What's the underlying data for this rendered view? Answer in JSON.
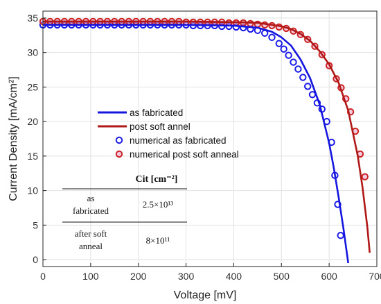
{
  "chart_data": {
    "type": "line",
    "title": "",
    "xlabel": "Voltage [mV]",
    "ylabel": "Current Density [mA/cm²]",
    "xlim": [
      0,
      700
    ],
    "ylim": [
      -1,
      36
    ],
    "x_ticks": [
      "0",
      "100",
      "200",
      "300",
      "400",
      "500",
      "600",
      "700"
    ],
    "y_ticks": [
      "0",
      "5",
      "10",
      "15",
      "20",
      "25",
      "30",
      "35"
    ],
    "grid": true,
    "legend_position": "center-left",
    "colors": {
      "as_fabricated": "#1515e0",
      "post_soft_anneal": "#b01818",
      "numerical_as_fabricated": "#1a1ae8",
      "numerical_post_soft_anneal": "#cc2222"
    },
    "series": [
      {
        "name": "as fabricated",
        "kind": "line",
        "x": [
          0,
          100,
          200,
          300,
          400,
          450,
          480,
          500,
          520,
          540,
          560,
          580,
          600,
          610,
          620,
          630,
          640
        ],
        "y": [
          34.0,
          34.0,
          34.0,
          34.0,
          33.9,
          33.6,
          33.0,
          32.2,
          31.0,
          29.0,
          26.3,
          22.5,
          16.9,
          13.2,
          9.0,
          4.5,
          -0.5
        ]
      },
      {
        "name": "post soft annel",
        "kind": "line",
        "x": [
          0,
          100,
          200,
          300,
          400,
          450,
          500,
          520,
          540,
          560,
          580,
          600,
          620,
          640,
          660,
          670,
          680,
          685
        ],
        "y": [
          34.5,
          34.5,
          34.5,
          34.5,
          34.4,
          34.3,
          33.8,
          33.4,
          32.7,
          31.7,
          30.2,
          28.3,
          25.6,
          21.6,
          15.0,
          10.5,
          4.8,
          1.0
        ]
      },
      {
        "name": "numerical as fabricated",
        "kind": "markers",
        "x": [
          0,
          15,
          30,
          45,
          60,
          75,
          90,
          105,
          120,
          135,
          150,
          165,
          180,
          195,
          210,
          225,
          240,
          255,
          270,
          285,
          300,
          315,
          330,
          345,
          360,
          375,
          390,
          405,
          420,
          435,
          450,
          465,
          480,
          495,
          505,
          515,
          525,
          535,
          545,
          555,
          565,
          575,
          585,
          595,
          605,
          612,
          618,
          624
        ],
        "y": [
          34.0,
          34.0,
          34.0,
          34.0,
          34.0,
          34.0,
          34.0,
          34.0,
          34.0,
          34.0,
          34.0,
          34.0,
          34.0,
          34.0,
          34.0,
          34.0,
          34.0,
          34.0,
          34.0,
          34.0,
          34.0,
          33.9,
          33.9,
          33.9,
          33.9,
          33.8,
          33.8,
          33.7,
          33.6,
          33.4,
          33.2,
          32.8,
          32.2,
          31.3,
          30.5,
          29.6,
          28.6,
          27.6,
          26.4,
          25.1,
          23.9,
          22.7,
          21.8,
          20.0,
          17.0,
          12.2,
          8.0,
          3.5
        ]
      },
      {
        "name": "numerical post soft anneal",
        "kind": "markers",
        "x": [
          0,
          15,
          30,
          45,
          60,
          75,
          90,
          105,
          120,
          135,
          150,
          165,
          180,
          195,
          210,
          225,
          240,
          255,
          270,
          285,
          300,
          315,
          330,
          345,
          360,
          375,
          390,
          405,
          420,
          435,
          450,
          465,
          480,
          495,
          510,
          525,
          540,
          555,
          570,
          585,
          600,
          615,
          625,
          635,
          645,
          655,
          665,
          675
        ],
        "y": [
          34.5,
          34.5,
          34.5,
          34.5,
          34.5,
          34.5,
          34.5,
          34.5,
          34.5,
          34.5,
          34.5,
          34.5,
          34.5,
          34.5,
          34.5,
          34.5,
          34.5,
          34.5,
          34.5,
          34.5,
          34.4,
          34.4,
          34.4,
          34.4,
          34.4,
          34.4,
          34.3,
          34.3,
          34.3,
          34.2,
          34.1,
          34.0,
          33.9,
          33.7,
          33.5,
          33.1,
          32.6,
          31.9,
          30.9,
          29.7,
          28.1,
          26.2,
          24.9,
          23.3,
          21.4,
          18.6,
          15.3,
          12.0
        ]
      }
    ],
    "legend": [
      "as fabricated",
      "post soft annel",
      "numerical as fabricated",
      "numerical post soft anneal"
    ],
    "table": {
      "header": "Cit [cm⁻²]",
      "rows": [
        {
          "label_line1": "as",
          "label_line2": "fabricated",
          "value": "2.5×10¹³"
        },
        {
          "label_line1": "after soft",
          "label_line2": "anneal",
          "value": "8×10¹¹"
        }
      ]
    }
  }
}
